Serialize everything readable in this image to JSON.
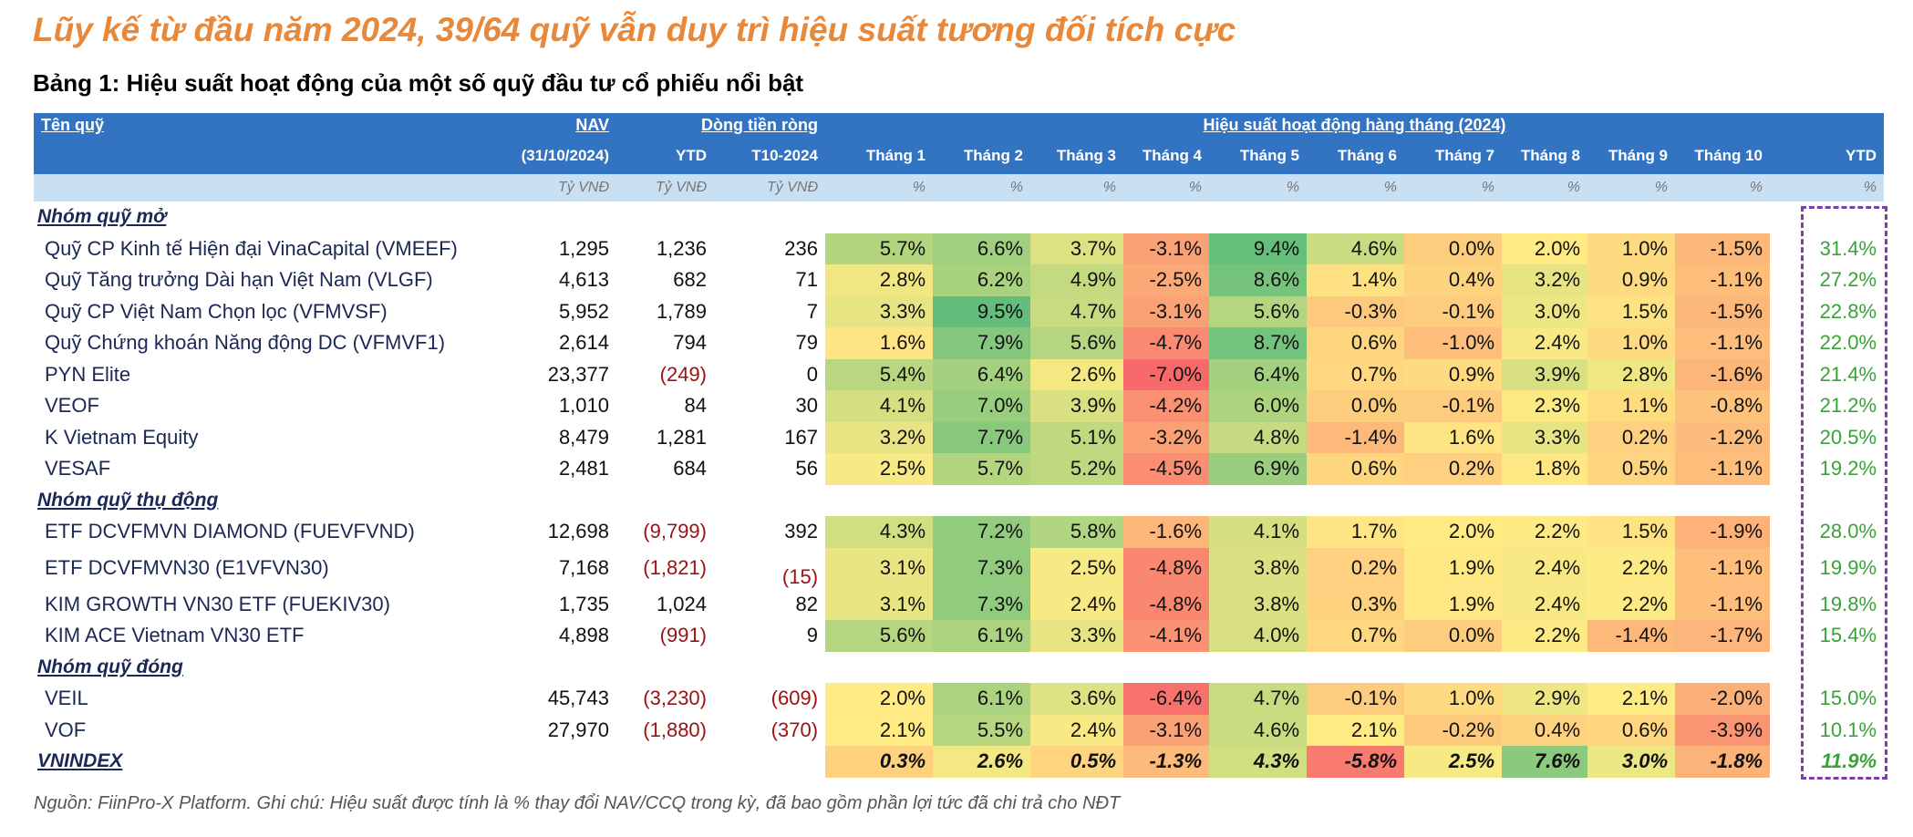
{
  "header": {
    "title": "Lũy kế từ đầu năm 2024, 39/64 quỹ vẫn duy trì hiệu suất tương đối tích cực",
    "subtitle": "Bảng 1: Hiệu suất hoạt động của một số quỹ đầu tư cổ phiếu nổi bật"
  },
  "table": {
    "head": {
      "name": "Tên quỹ",
      "nav": "NAV",
      "flow": "Dòng tiền ròng",
      "perf": "Hiệu suất hoạt động hàng tháng (2024)",
      "nav_date": "(31/10/2024)",
      "flow_cols": [
        "YTD",
        "T10-2024"
      ],
      "months": [
        "Tháng 1",
        "Tháng 2",
        "Tháng 3",
        "Tháng 4",
        "Tháng 5",
        "Tháng 6",
        "Tháng 7",
        "Tháng 8",
        "Tháng 9",
        "Tháng 10"
      ],
      "ytd": "YTD",
      "units": [
        "Tỷ VNĐ",
        "Tỷ VNĐ",
        "Tỷ VNĐ",
        "%",
        "%",
        "%",
        "%",
        "%",
        "%",
        "%",
        "%",
        "%",
        "%",
        "%"
      ]
    },
    "groups": [
      {
        "label": "Nhóm quỹ mở",
        "rows": [
          {
            "name": "Quỹ CP Kinh tế Hiện đại VinaCapital (VMEEF)",
            "nav": "1,295",
            "flow_ytd": "1,236",
            "flow_t10": "236",
            "months": [
              "5.7%",
              "6.6%",
              "3.7%",
              "-3.1%",
              "9.4%",
              "4.6%",
              "0.0%",
              "2.0%",
              "1.0%",
              "-1.5%"
            ],
            "ytd": "31.4%"
          },
          {
            "name": "Quỹ Tăng trưởng Dài hạn Việt Nam (VLGF)",
            "nav": "4,613",
            "flow_ytd": "682",
            "flow_t10": "71",
            "months": [
              "2.8%",
              "6.2%",
              "4.9%",
              "-2.5%",
              "8.6%",
              "1.4%",
              "0.4%",
              "3.2%",
              "0.9%",
              "-1.1%"
            ],
            "ytd": "27.2%"
          },
          {
            "name": "Quỹ CP Việt Nam Chọn lọc (VFMVSF)",
            "nav": "5,952",
            "flow_ytd": "1,789",
            "flow_t10": "7",
            "months": [
              "3.3%",
              "9.5%",
              "4.7%",
              "-3.1%",
              "5.6%",
              "-0.3%",
              "-0.1%",
              "3.0%",
              "1.5%",
              "-1.5%"
            ],
            "ytd": "22.8%"
          },
          {
            "name": "Quỹ Chứng khoán Năng động DC (VFMVF1)",
            "nav": "2,614",
            "flow_ytd": "794",
            "flow_t10": "79",
            "months": [
              "1.6%",
              "7.9%",
              "5.6%",
              "-4.7%",
              "8.7%",
              "0.6%",
              "-1.0%",
              "2.4%",
              "1.0%",
              "-1.1%"
            ],
            "ytd": "22.0%"
          },
          {
            "name": "PYN Elite",
            "nav": "23,377",
            "flow_ytd": "(249)",
            "flow_t10": "0",
            "months": [
              "5.4%",
              "6.4%",
              "2.6%",
              "-7.0%",
              "6.4%",
              "0.7%",
              "0.9%",
              "3.9%",
              "2.8%",
              "-1.6%"
            ],
            "ytd": "21.4%"
          },
          {
            "name": "VEOF",
            "nav": "1,010",
            "flow_ytd": "84",
            "flow_t10": "30",
            "months": [
              "4.1%",
              "7.0%",
              "3.9%",
              "-4.2%",
              "6.0%",
              "0.0%",
              "-0.1%",
              "2.3%",
              "1.1%",
              "-0.8%"
            ],
            "ytd": "21.2%"
          },
          {
            "name": "K Vietnam Equity",
            "nav": "8,479",
            "flow_ytd": "1,281",
            "flow_t10": "167",
            "months": [
              "3.2%",
              "7.7%",
              "5.1%",
              "-3.2%",
              "4.8%",
              "-1.4%",
              "1.6%",
              "3.3%",
              "0.2%",
              "-1.2%"
            ],
            "ytd": "20.5%"
          },
          {
            "name": "VESAF",
            "nav": "2,481",
            "flow_ytd": "684",
            "flow_t10": "56",
            "months": [
              "2.5%",
              "5.7%",
              "5.2%",
              "-4.5%",
              "6.9%",
              "0.6%",
              "0.2%",
              "1.8%",
              "0.5%",
              "-1.1%"
            ],
            "ytd": "19.2%"
          }
        ]
      },
      {
        "label": "Nhóm quỹ thụ động",
        "rows": [
          {
            "name": "ETF DCVFMVN DIAMOND (FUEVFVND)",
            "nav": "12,698",
            "flow_ytd": "(9,799)",
            "flow_t10": "392",
            "months": [
              "4.3%",
              "7.2%",
              "5.8%",
              "-1.6%",
              "4.1%",
              "1.7%",
              "2.0%",
              "2.2%",
              "1.5%",
              "-1.9%"
            ],
            "ytd": "28.0%"
          },
          {
            "name": "ETF DCVFMVN30 (E1VFVN30)",
            "nav": "7,168",
            "flow_ytd": "(1,821)",
            "flow_t10": "(15)",
            "months": [
              "3.1%",
              "7.3%",
              "2.5%",
              "-4.8%",
              "3.8%",
              "0.2%",
              "1.9%",
              "2.4%",
              "2.2%",
              "-1.1%"
            ],
            "ytd": "19.9%"
          },
          {
            "name": "KIM GROWTH VN30 ETF (FUEKIV30)",
            "nav": "1,735",
            "flow_ytd": "1,024",
            "flow_t10": "82",
            "months": [
              "3.1%",
              "7.3%",
              "2.4%",
              "-4.8%",
              "3.8%",
              "0.3%",
              "1.9%",
              "2.4%",
              "2.2%",
              "-1.1%"
            ],
            "ytd": "19.8%"
          },
          {
            "name": "KIM ACE Vietnam VN30 ETF",
            "nav": "4,898",
            "flow_ytd": "(991)",
            "flow_t10": "9",
            "months": [
              "5.6%",
              "6.1%",
              "3.3%",
              "-4.1%",
              "4.0%",
              "0.7%",
              "0.0%",
              "2.2%",
              "-1.4%",
              "-1.7%"
            ],
            "ytd": "15.4%"
          }
        ]
      },
      {
        "label": "Nhóm quỹ đóng",
        "rows": [
          {
            "name": "VEIL",
            "nav": "45,743",
            "flow_ytd": "(3,230)",
            "flow_t10": "(609)",
            "months": [
              "2.0%",
              "6.1%",
              "3.6%",
              "-6.4%",
              "4.7%",
              "-0.1%",
              "1.0%",
              "2.9%",
              "2.1%",
              "-2.0%"
            ],
            "ytd": "15.0%"
          },
          {
            "name": "VOF",
            "nav": "27,970",
            "flow_ytd": "(1,880)",
            "flow_t10": "(370)",
            "months": [
              "2.1%",
              "5.5%",
              "2.4%",
              "-3.1%",
              "4.6%",
              "2.1%",
              "-0.2%",
              "0.4%",
              "0.6%",
              "-3.9%"
            ],
            "ytd": "10.1%"
          }
        ]
      }
    ],
    "index": {
      "label": "VNINDEX",
      "months": [
        "0.3%",
        "2.6%",
        "0.5%",
        "-1.3%",
        "4.3%",
        "-5.8%",
        "2.5%",
        "7.6%",
        "3.0%",
        "-1.8%"
      ],
      "ytd": "11.9%"
    }
  },
  "note": "Nguồn: FiinPro-X Platform. Ghi chú: Hiệu suất được tính là % thay đổi NAV/CCQ trong kỳ, đã bao gồm phần lợi tức đã chi trả cho NĐT"
}
